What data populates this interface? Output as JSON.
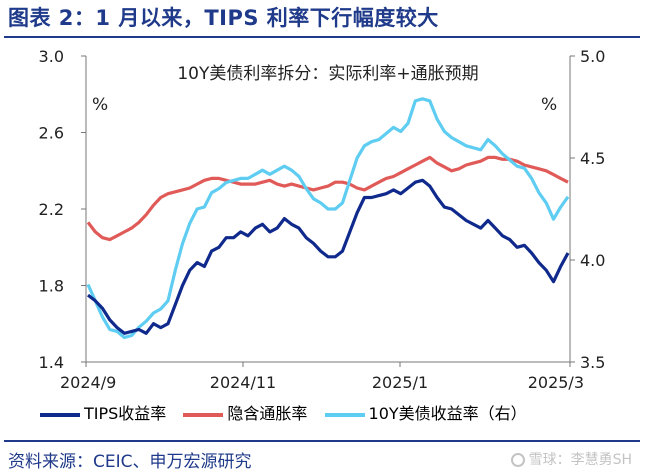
{
  "header": {
    "title": "图表 2：1 月以来，TIPS 利率下行幅度较大"
  },
  "footer": {
    "source": "资料来源：CEIC、申万宏源研究",
    "watermark": "雪球：李慧勇SH"
  },
  "colors": {
    "tips": "#0f2a8c",
    "breakeven": "#e05a58",
    "nominal": "#5fcdf2",
    "accent": "#1f3a8a"
  },
  "chart_data": {
    "type": "line",
    "title": "10Y美债利率拆分：实际利率+通胀预期",
    "y_left_unit": "%",
    "y_right_unit": "%",
    "y_left_range": [
      1.4,
      3.0
    ],
    "y_left_ticks": [
      "3.0",
      "2.6",
      "2.2",
      "1.8",
      "1.4"
    ],
    "y_right_range": [
      3.5,
      5.0
    ],
    "y_right_ticks": [
      "5.0",
      "4.5",
      "4.0",
      "3.5"
    ],
    "x_ticks": [
      "2024/9",
      "2024/11",
      "2025/1",
      "2025/3"
    ],
    "grid": false,
    "legend_position": "bottom",
    "series": [
      {
        "name": "TIPS收益率",
        "axis": "left",
        "values": [
          1.75,
          1.72,
          1.68,
          1.62,
          1.58,
          1.55,
          1.56,
          1.57,
          1.55,
          1.6,
          1.58,
          1.6,
          1.7,
          1.8,
          1.88,
          1.92,
          1.9,
          1.98,
          2.0,
          2.05,
          2.05,
          2.08,
          2.06,
          2.1,
          2.12,
          2.08,
          2.1,
          2.15,
          2.12,
          2.1,
          2.05,
          2.02,
          1.98,
          1.95,
          1.95,
          1.98,
          2.08,
          2.18,
          2.26,
          2.26,
          2.27,
          2.28,
          2.3,
          2.28,
          2.31,
          2.34,
          2.35,
          2.32,
          2.26,
          2.21,
          2.2,
          2.17,
          2.14,
          2.12,
          2.1,
          2.14,
          2.1,
          2.06,
          2.04,
          2.0,
          2.01,
          1.97,
          1.92,
          1.88,
          1.82,
          1.9,
          1.97
        ]
      },
      {
        "name": "隐含通胀率",
        "axis": "left",
        "values": [
          2.13,
          2.08,
          2.05,
          2.04,
          2.06,
          2.08,
          2.1,
          2.13,
          2.17,
          2.22,
          2.26,
          2.28,
          2.29,
          2.3,
          2.31,
          2.33,
          2.35,
          2.36,
          2.36,
          2.35,
          2.34,
          2.33,
          2.33,
          2.33,
          2.34,
          2.35,
          2.33,
          2.32,
          2.33,
          2.32,
          2.31,
          2.3,
          2.31,
          2.32,
          2.34,
          2.34,
          2.33,
          2.31,
          2.3,
          2.32,
          2.34,
          2.36,
          2.37,
          2.39,
          2.41,
          2.43,
          2.45,
          2.47,
          2.44,
          2.42,
          2.4,
          2.41,
          2.43,
          2.44,
          2.45,
          2.47,
          2.47,
          2.46,
          2.46,
          2.45,
          2.43,
          2.42,
          2.41,
          2.4,
          2.38,
          2.36,
          2.34
        ]
      },
      {
        "name": "10Y美债收益率（右）",
        "axis": "right",
        "values": [
          3.88,
          3.8,
          3.72,
          3.66,
          3.65,
          3.62,
          3.63,
          3.67,
          3.7,
          3.74,
          3.76,
          3.8,
          3.95,
          4.08,
          4.18,
          4.25,
          4.26,
          4.33,
          4.35,
          4.38,
          4.39,
          4.4,
          4.4,
          4.42,
          4.44,
          4.42,
          4.44,
          4.46,
          4.44,
          4.41,
          4.35,
          4.3,
          4.28,
          4.25,
          4.25,
          4.28,
          4.39,
          4.5,
          4.56,
          4.58,
          4.59,
          4.62,
          4.65,
          4.63,
          4.67,
          4.78,
          4.79,
          4.78,
          4.69,
          4.63,
          4.6,
          4.58,
          4.56,
          4.55,
          4.54,
          4.59,
          4.56,
          4.52,
          4.49,
          4.46,
          4.45,
          4.4,
          4.33,
          4.28,
          4.2,
          4.26,
          4.31
        ]
      }
    ]
  }
}
